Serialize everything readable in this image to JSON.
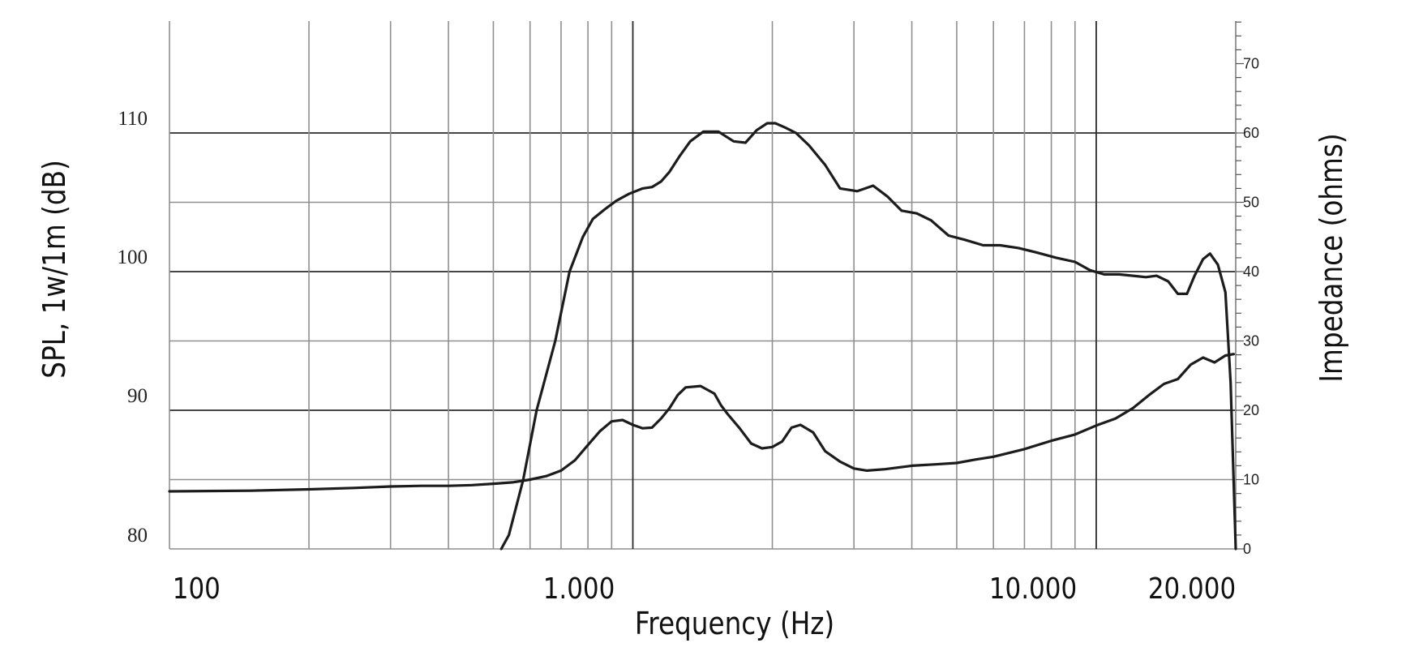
{
  "chart_data": {
    "type": "line",
    "title": "",
    "xlabel": "Frequency (Hz)",
    "ylabel": "SPL, 1w/1m (dB)",
    "y2label": "Impedance (ohms)",
    "x_scale": "log",
    "xlim": [
      100,
      20000
    ],
    "ylim": [
      80,
      115
    ],
    "y2lim": [
      0,
      77
    ],
    "grid": true,
    "x_tick_labels": [
      {
        "value": 100,
        "label": "100"
      },
      {
        "value": 1000,
        "label": "1.000"
      },
      {
        "value": 10000,
        "label": "10.000"
      },
      {
        "value": 20000,
        "label": "20.000"
      }
    ],
    "y_tick_labels": [
      {
        "value": 80,
        "label": "80"
      },
      {
        "value": 90,
        "label": "90"
      },
      {
        "value": 100,
        "label": "100"
      },
      {
        "value": 110,
        "label": "110"
      }
    ],
    "y2_tick_labels": [
      {
        "value": 0,
        "label": "0"
      },
      {
        "value": 10,
        "label": "10"
      },
      {
        "value": 20,
        "label": "20"
      },
      {
        "value": 30,
        "label": "30"
      },
      {
        "value": 40,
        "label": "40"
      },
      {
        "value": 50,
        "label": "50"
      },
      {
        "value": 60,
        "label": "60"
      },
      {
        "value": 70,
        "label": "70"
      }
    ],
    "series": [
      {
        "axis": "left",
        "x": [
          520,
          540,
          580,
          620,
          680,
          730,
          780,
          820,
          870,
          920,
          980,
          1050,
          1100,
          1150,
          1200,
          1260,
          1330,
          1420,
          1530,
          1650,
          1750,
          1850,
          1950,
          2030,
          2130,
          2250,
          2400,
          2600,
          2800,
          3050,
          3300,
          3550,
          3800,
          4100,
          4400,
          4800,
          5200,
          5700,
          6200,
          6800,
          7400,
          8200,
          9000,
          9700,
          10400,
          11200,
          12000,
          12800,
          13500,
          14300,
          15000,
          15700,
          16300,
          17000,
          17600,
          18300,
          19000,
          19500,
          20000
        ],
        "y": [
          80,
          81,
          85,
          90,
          95,
          100,
          102.5,
          103.8,
          104.5,
          105.1,
          105.6,
          106,
          106.1,
          106.5,
          107.2,
          108.3,
          109.4,
          110.1,
          110.1,
          109.4,
          109.3,
          110.2,
          110.7,
          110.7,
          110.4,
          110,
          109.1,
          107.7,
          106,
          105.8,
          106.2,
          105.4,
          104.4,
          104.2,
          103.7,
          102.6,
          102.3,
          101.9,
          101.9,
          101.7,
          101.4,
          101,
          100.7,
          100.1,
          99.8,
          99.8,
          99.7,
          99.6,
          99.7,
          99.3,
          98.4,
          98.4,
          99.7,
          100.9,
          101.3,
          100.5,
          98.5,
          92,
          80
        ]
      },
      {
        "axis": "right",
        "x": [
          100,
          150,
          200,
          250,
          300,
          350,
          400,
          450,
          500,
          550,
          600,
          650,
          700,
          750,
          800,
          850,
          900,
          950,
          1000,
          1050,
          1100,
          1150,
          1200,
          1250,
          1300,
          1400,
          1500,
          1550,
          1600,
          1700,
          1800,
          1900,
          2000,
          2100,
          2200,
          2300,
          2450,
          2600,
          2800,
          3000,
          3200,
          3500,
          4000,
          4500,
          5000,
          5500,
          6000,
          7000,
          8000,
          9000,
          10000,
          11000,
          12000,
          13000,
          14000,
          15000,
          16000,
          17000,
          18000,
          19000,
          19800
        ],
        "y": [
          8.3,
          8.4,
          8.6,
          8.8,
          9,
          9.1,
          9.1,
          9.2,
          9.4,
          9.6,
          10,
          10.5,
          11.3,
          12.8,
          15,
          17,
          18.4,
          18.6,
          17.9,
          17.4,
          17.5,
          18.8,
          20.3,
          22.2,
          23.3,
          23.5,
          22.4,
          20.7,
          19.5,
          17.4,
          15.2,
          14.5,
          14.7,
          15.5,
          17.5,
          17.9,
          16.8,
          14.1,
          12.6,
          11.6,
          11.3,
          11.5,
          12,
          12.2,
          12.4,
          12.9,
          13.3,
          14.4,
          15.6,
          16.5,
          17.8,
          18.8,
          20.3,
          22.2,
          23.8,
          24.5,
          26.6,
          27.6,
          26.9,
          27.9,
          28.1
        ]
      }
    ]
  }
}
